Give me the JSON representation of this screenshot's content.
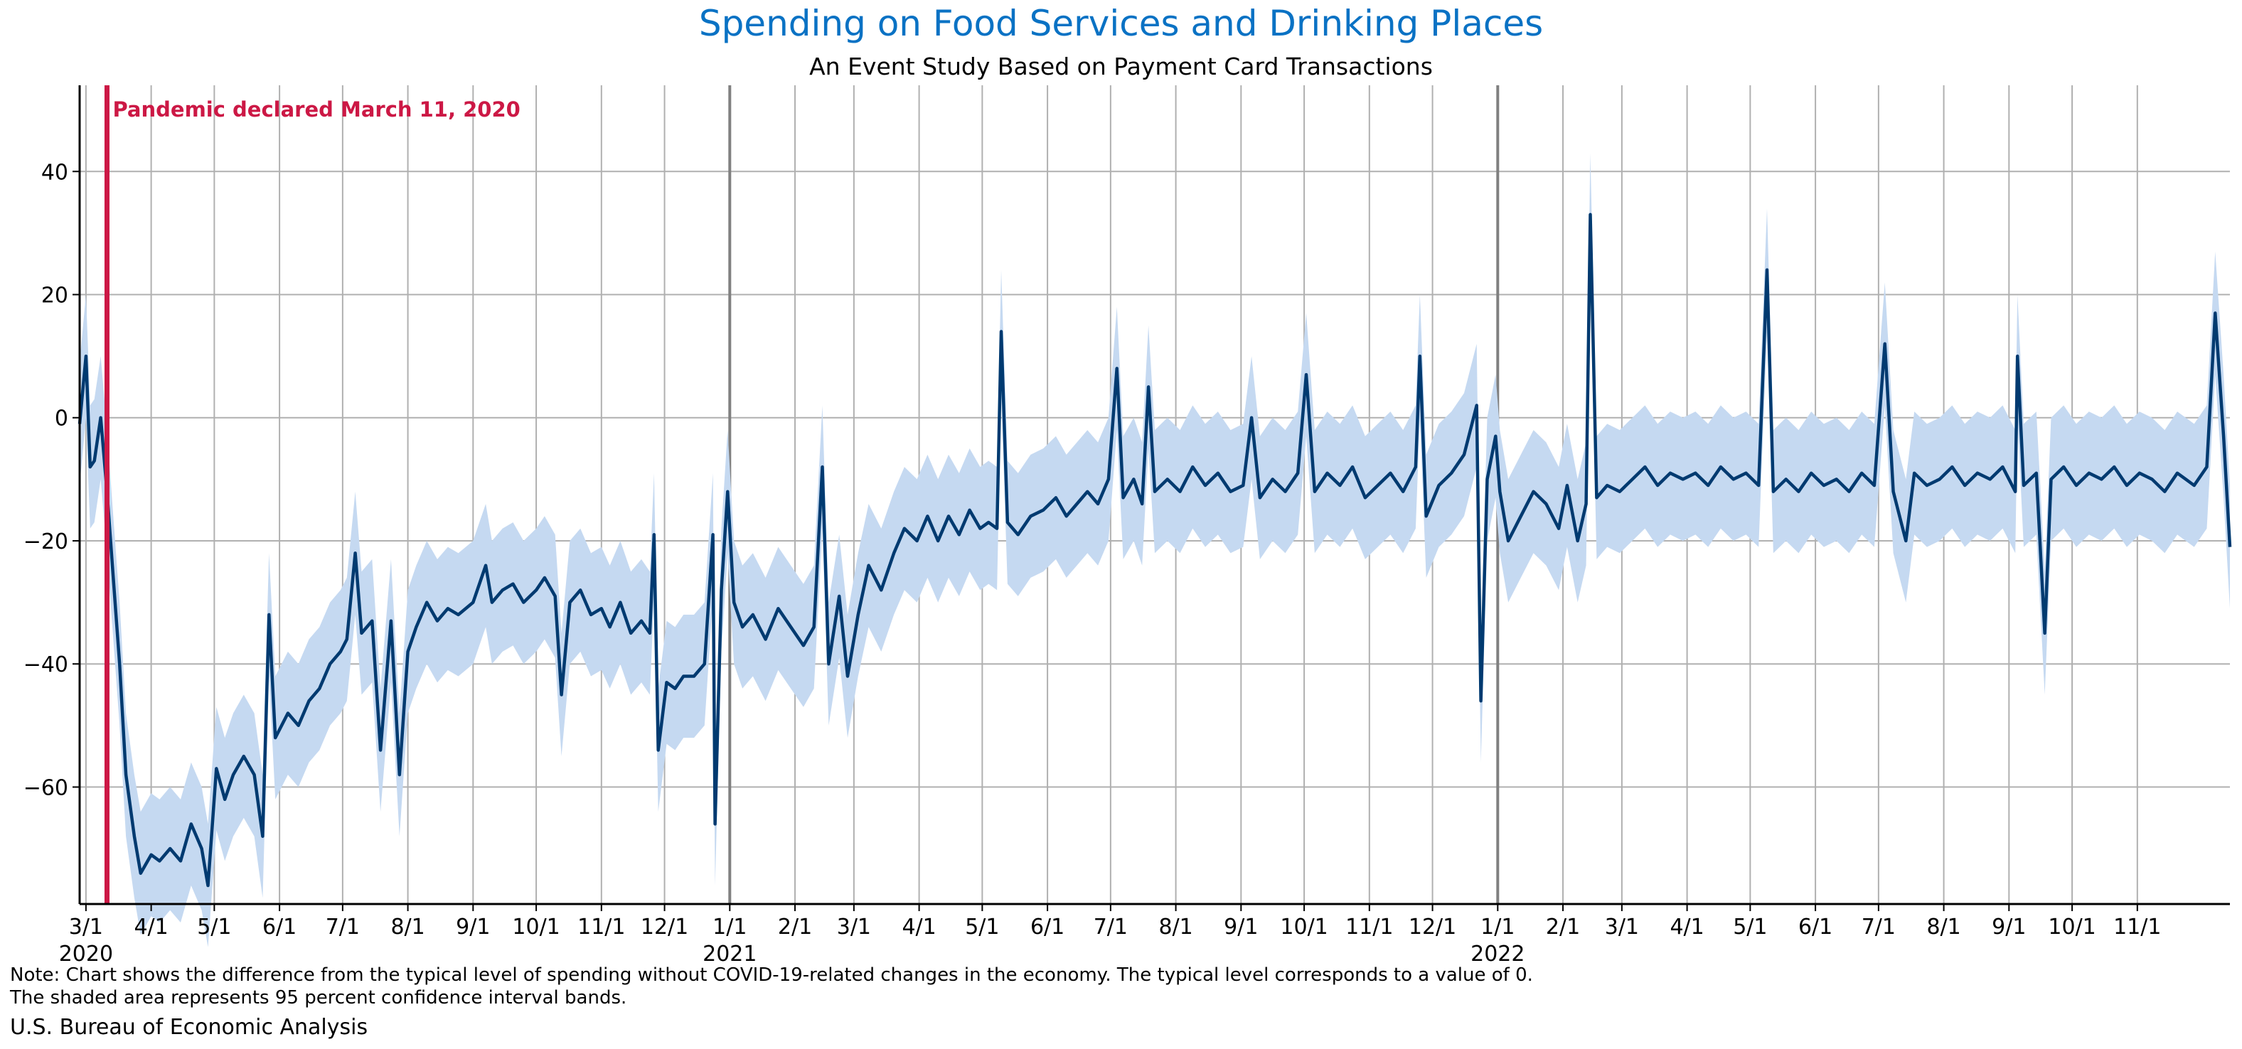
{
  "chart_data": {
    "type": "line",
    "title": "Spending on Food Services and Drinking Places",
    "subtitle": "An Event Study Based on Payment Card Transactions",
    "xlabel": "",
    "ylabel": "",
    "x_range": [
      "2020-02-27",
      "2022-12-15"
    ],
    "ylim": [
      -79,
      54
    ],
    "y_ticks": [
      40,
      20,
      0,
      -20,
      -40,
      -60
    ],
    "y_tick_labels": [
      "40",
      "20",
      "0",
      "−20",
      "−40",
      "−60"
    ],
    "x_ticks": [
      {
        "date": "2020-03-01",
        "label": "3/1",
        "year": "2020"
      },
      {
        "date": "2020-04-01",
        "label": "4/1"
      },
      {
        "date": "2020-05-01",
        "label": "5/1"
      },
      {
        "date": "2020-06-01",
        "label": "6/1"
      },
      {
        "date": "2020-07-01",
        "label": "7/1"
      },
      {
        "date": "2020-08-01",
        "label": "8/1"
      },
      {
        "date": "2020-09-01",
        "label": "9/1"
      },
      {
        "date": "2020-10-01",
        "label": "10/1"
      },
      {
        "date": "2020-11-01",
        "label": "11/1"
      },
      {
        "date": "2020-12-01",
        "label": "12/1"
      },
      {
        "date": "2021-01-01",
        "label": "1/1",
        "year": "2021"
      },
      {
        "date": "2021-02-01",
        "label": "2/1"
      },
      {
        "date": "2021-03-01",
        "label": "3/1"
      },
      {
        "date": "2021-04-01",
        "label": "4/1"
      },
      {
        "date": "2021-05-01",
        "label": "5/1"
      },
      {
        "date": "2021-06-01",
        "label": "6/1"
      },
      {
        "date": "2021-07-01",
        "label": "7/1"
      },
      {
        "date": "2021-08-01",
        "label": "8/1"
      },
      {
        "date": "2021-09-01",
        "label": "9/1"
      },
      {
        "date": "2021-10-01",
        "label": "10/1"
      },
      {
        "date": "2021-11-01",
        "label": "11/1"
      },
      {
        "date": "2021-12-01",
        "label": "12/1"
      },
      {
        "date": "2022-01-01",
        "label": "1/1",
        "year": "2022"
      },
      {
        "date": "2022-02-01",
        "label": "2/1"
      },
      {
        "date": "2022-03-01",
        "label": "3/1"
      },
      {
        "date": "2022-04-01",
        "label": "4/1"
      },
      {
        "date": "2022-05-01",
        "label": "5/1"
      },
      {
        "date": "2022-06-01",
        "label": "6/1"
      },
      {
        "date": "2022-07-01",
        "label": "7/1"
      },
      {
        "date": "2022-08-01",
        "label": "8/1"
      },
      {
        "date": "2022-09-01",
        "label": "9/1"
      },
      {
        "date": "2022-10-01",
        "label": "10/1"
      },
      {
        "date": "2022-11-01",
        "label": "11/1"
      }
    ],
    "grid": true,
    "year_dividers": [
      "2021-01-01",
      "2022-01-01"
    ],
    "event_line": {
      "date": "2020-03-11",
      "label": "Pandemic declared March 11, 2020",
      "color": "#cc1845"
    },
    "series": [
      {
        "name": "",
        "color": "#003a70",
        "band_color": "#c5d9f1",
        "band_width": 10,
        "points": [
          [
            "2020-02-27",
            -1
          ],
          [
            "2020-03-01",
            10
          ],
          [
            "2020-03-03",
            -8
          ],
          [
            "2020-03-05",
            -7
          ],
          [
            "2020-03-08",
            0
          ],
          [
            "2020-03-10",
            -8
          ],
          [
            "2020-03-11",
            -12
          ],
          [
            "2020-03-14",
            -26
          ],
          [
            "2020-03-17",
            -40
          ],
          [
            "2020-03-20",
            -58
          ],
          [
            "2020-03-24",
            -68
          ],
          [
            "2020-03-27",
            -74
          ],
          [
            "2020-04-01",
            -71
          ],
          [
            "2020-04-05",
            -72
          ],
          [
            "2020-04-10",
            -70
          ],
          [
            "2020-04-15",
            -72
          ],
          [
            "2020-04-20",
            -66
          ],
          [
            "2020-04-25",
            -70
          ],
          [
            "2020-04-28",
            -76
          ],
          [
            "2020-05-02",
            -57
          ],
          [
            "2020-05-06",
            -62
          ],
          [
            "2020-05-10",
            -58
          ],
          [
            "2020-05-15",
            -55
          ],
          [
            "2020-05-20",
            -58
          ],
          [
            "2020-05-24",
            -68
          ],
          [
            "2020-05-27",
            -32
          ],
          [
            "2020-05-30",
            -52
          ],
          [
            "2020-06-05",
            -48
          ],
          [
            "2020-06-10",
            -50
          ],
          [
            "2020-06-15",
            -46
          ],
          [
            "2020-06-20",
            -44
          ],
          [
            "2020-06-25",
            -40
          ],
          [
            "2020-06-30",
            -38
          ],
          [
            "2020-07-03",
            -36
          ],
          [
            "2020-07-07",
            -22
          ],
          [
            "2020-07-10",
            -35
          ],
          [
            "2020-07-15",
            -33
          ],
          [
            "2020-07-19",
            -54
          ],
          [
            "2020-07-24",
            -33
          ],
          [
            "2020-07-28",
            -58
          ],
          [
            "2020-08-01",
            -38
          ],
          [
            "2020-08-05",
            -34
          ],
          [
            "2020-08-10",
            -30
          ],
          [
            "2020-08-15",
            -33
          ],
          [
            "2020-08-20",
            -31
          ],
          [
            "2020-08-25",
            -32
          ],
          [
            "2020-09-01",
            -30
          ],
          [
            "2020-09-07",
            -24
          ],
          [
            "2020-09-10",
            -30
          ],
          [
            "2020-09-15",
            -28
          ],
          [
            "2020-09-20",
            -27
          ],
          [
            "2020-09-25",
            -30
          ],
          [
            "2020-10-01",
            -28
          ],
          [
            "2020-10-05",
            -26
          ],
          [
            "2020-10-10",
            -29
          ],
          [
            "2020-10-13",
            -45
          ],
          [
            "2020-10-17",
            -30
          ],
          [
            "2020-10-22",
            -28
          ],
          [
            "2020-10-27",
            -32
          ],
          [
            "2020-11-01",
            -31
          ],
          [
            "2020-11-05",
            -34
          ],
          [
            "2020-11-10",
            -30
          ],
          [
            "2020-11-15",
            -35
          ],
          [
            "2020-11-20",
            -33
          ],
          [
            "2020-11-24",
            -35
          ],
          [
            "2020-11-26",
            -19
          ],
          [
            "2020-11-28",
            -54
          ],
          [
            "2020-12-02",
            -43
          ],
          [
            "2020-12-06",
            -44
          ],
          [
            "2020-12-10",
            -42
          ],
          [
            "2020-12-15",
            -42
          ],
          [
            "2020-12-20",
            -40
          ],
          [
            "2020-12-24",
            -19
          ],
          [
            "2020-12-25",
            -66
          ],
          [
            "2020-12-28",
            -28
          ],
          [
            "2020-12-31",
            -12
          ],
          [
            "2021-01-03",
            -30
          ],
          [
            "2021-01-07",
            -34
          ],
          [
            "2021-01-12",
            -32
          ],
          [
            "2021-01-18",
            -36
          ],
          [
            "2021-01-24",
            -31
          ],
          [
            "2021-01-30",
            -34
          ],
          [
            "2021-02-05",
            -37
          ],
          [
            "2021-02-10",
            -34
          ],
          [
            "2021-02-14",
            -8
          ],
          [
            "2021-02-17",
            -40
          ],
          [
            "2021-02-22",
            -29
          ],
          [
            "2021-02-26",
            -42
          ],
          [
            "2021-03-03",
            -32
          ],
          [
            "2021-03-08",
            -24
          ],
          [
            "2021-03-14",
            -28
          ],
          [
            "2021-03-20",
            -22
          ],
          [
            "2021-03-25",
            -18
          ],
          [
            "2021-03-31",
            -20
          ],
          [
            "2021-04-05",
            -16
          ],
          [
            "2021-04-10",
            -20
          ],
          [
            "2021-04-15",
            -16
          ],
          [
            "2021-04-20",
            -19
          ],
          [
            "2021-04-25",
            -15
          ],
          [
            "2021-04-30",
            -18
          ],
          [
            "2021-05-04",
            -17
          ],
          [
            "2021-05-08",
            -18
          ],
          [
            "2021-05-10",
            14
          ],
          [
            "2021-05-13",
            -17
          ],
          [
            "2021-05-18",
            -19
          ],
          [
            "2021-05-24",
            -16
          ],
          [
            "2021-05-30",
            -15
          ],
          [
            "2021-06-05",
            -13
          ],
          [
            "2021-06-10",
            -16
          ],
          [
            "2021-06-15",
            -14
          ],
          [
            "2021-06-20",
            -12
          ],
          [
            "2021-06-25",
            -14
          ],
          [
            "2021-06-30",
            -10
          ],
          [
            "2021-07-04",
            8
          ],
          [
            "2021-07-07",
            -13
          ],
          [
            "2021-07-12",
            -10
          ],
          [
            "2021-07-16",
            -14
          ],
          [
            "2021-07-19",
            5
          ],
          [
            "2021-07-22",
            -12
          ],
          [
            "2021-07-28",
            -10
          ],
          [
            "2021-08-03",
            -12
          ],
          [
            "2021-08-09",
            -8
          ],
          [
            "2021-08-15",
            -11
          ],
          [
            "2021-08-21",
            -9
          ],
          [
            "2021-08-27",
            -12
          ],
          [
            "2021-09-02",
            -11
          ],
          [
            "2021-09-06",
            0
          ],
          [
            "2021-09-10",
            -13
          ],
          [
            "2021-09-16",
            -10
          ],
          [
            "2021-09-22",
            -12
          ],
          [
            "2021-09-28",
            -9
          ],
          [
            "2021-10-02",
            7
          ],
          [
            "2021-10-06",
            -12
          ],
          [
            "2021-10-12",
            -9
          ],
          [
            "2021-10-18",
            -11
          ],
          [
            "2021-10-24",
            -8
          ],
          [
            "2021-10-30",
            -13
          ],
          [
            "2021-11-05",
            -11
          ],
          [
            "2021-11-11",
            -9
          ],
          [
            "2021-11-17",
            -12
          ],
          [
            "2021-11-23",
            -8
          ],
          [
            "2021-11-25",
            10
          ],
          [
            "2021-11-28",
            -16
          ],
          [
            "2021-12-04",
            -11
          ],
          [
            "2021-12-10",
            -9
          ],
          [
            "2021-12-16",
            -6
          ],
          [
            "2021-12-22",
            2
          ],
          [
            "2021-12-24",
            -46
          ],
          [
            "2021-12-27",
            -10
          ],
          [
            "2021-12-31",
            -3
          ],
          [
            "2022-01-02",
            -12
          ],
          [
            "2022-01-06",
            -20
          ],
          [
            "2022-01-12",
            -16
          ],
          [
            "2022-01-18",
            -12
          ],
          [
            "2022-01-24",
            -14
          ],
          [
            "2022-01-30",
            -18
          ],
          [
            "2022-02-03",
            -11
          ],
          [
            "2022-02-08",
            -20
          ],
          [
            "2022-02-12",
            -14
          ],
          [
            "2022-02-14",
            33
          ],
          [
            "2022-02-17",
            -13
          ],
          [
            "2022-02-22",
            -11
          ],
          [
            "2022-02-28",
            -12
          ],
          [
            "2022-03-06",
            -10
          ],
          [
            "2022-03-12",
            -8
          ],
          [
            "2022-03-18",
            -11
          ],
          [
            "2022-03-24",
            -9
          ],
          [
            "2022-03-30",
            -10
          ],
          [
            "2022-04-05",
            -9
          ],
          [
            "2022-04-11",
            -11
          ],
          [
            "2022-04-17",
            -8
          ],
          [
            "2022-04-23",
            -10
          ],
          [
            "2022-04-29",
            -9
          ],
          [
            "2022-05-05",
            -11
          ],
          [
            "2022-05-09",
            24
          ],
          [
            "2022-05-12",
            -12
          ],
          [
            "2022-05-18",
            -10
          ],
          [
            "2022-05-24",
            -12
          ],
          [
            "2022-05-30",
            -9
          ],
          [
            "2022-06-05",
            -11
          ],
          [
            "2022-06-11",
            -10
          ],
          [
            "2022-06-17",
            -12
          ],
          [
            "2022-06-23",
            -9
          ],
          [
            "2022-06-29",
            -11
          ],
          [
            "2022-07-04",
            12
          ],
          [
            "2022-07-08",
            -12
          ],
          [
            "2022-07-14",
            -20
          ],
          [
            "2022-07-18",
            -9
          ],
          [
            "2022-07-24",
            -11
          ],
          [
            "2022-07-30",
            -10
          ],
          [
            "2022-08-05",
            -8
          ],
          [
            "2022-08-11",
            -11
          ],
          [
            "2022-08-17",
            -9
          ],
          [
            "2022-08-23",
            -10
          ],
          [
            "2022-08-29",
            -8
          ],
          [
            "2022-09-04",
            -12
          ],
          [
            "2022-09-05",
            10
          ],
          [
            "2022-09-08",
            -11
          ],
          [
            "2022-09-14",
            -9
          ],
          [
            "2022-09-18",
            -35
          ],
          [
            "2022-09-21",
            -10
          ],
          [
            "2022-09-27",
            -8
          ],
          [
            "2022-10-03",
            -11
          ],
          [
            "2022-10-09",
            -9
          ],
          [
            "2022-10-15",
            -10
          ],
          [
            "2022-10-21",
            -8
          ],
          [
            "2022-10-27",
            -11
          ],
          [
            "2022-11-02",
            -9
          ],
          [
            "2022-11-08",
            -10
          ],
          [
            "2022-11-14",
            -12
          ],
          [
            "2022-11-20",
            -9
          ],
          [
            "2022-11-24",
            -10
          ],
          [
            "2022-11-28",
            -11
          ],
          [
            "2022-12-04",
            -8
          ],
          [
            "2022-12-08",
            17
          ],
          [
            "2022-12-12",
            -3
          ],
          [
            "2022-12-15",
            -21
          ]
        ]
      }
    ]
  },
  "note": {
    "line1": "Note: Chart shows the difference from the typical level of spending without COVID-19-related changes in the economy. The typical level corresponds to a value of 0.",
    "line2": "The shaded area represents 95 percent confidence interval bands."
  },
  "source": "U.S. Bureau of Economic Analysis"
}
